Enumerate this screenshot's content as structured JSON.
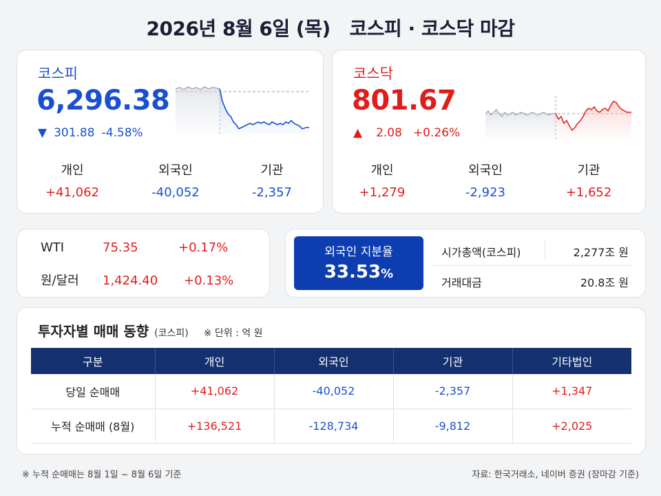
{
  "title": "2026년 8월 6일 (목)   코스피 · 코스닥 마감",
  "kospi": {
    "name": "코스피",
    "value": "6,296.38",
    "arrow": "▼",
    "change": "301.88",
    "change_pct": "-4.58%",
    "investors": [
      {
        "label": "개인",
        "value": "+41,062"
      },
      {
        "label": "외국인",
        "value": "-40,052"
      },
      {
        "label": "기관",
        "value": "-2,357"
      }
    ]
  },
  "kosdaq": {
    "name": "코스닥",
    "value": "801.67",
    "arrow": "▲",
    "change": "2.08",
    "change_pct": "+0.26%",
    "investors": [
      {
        "label": "개인",
        "value": "+1,279"
      },
      {
        "label": "외국인",
        "value": "-2,923"
      },
      {
        "label": "기관",
        "value": "+1,652"
      }
    ]
  },
  "macro": [
    {
      "name": "WTI",
      "price": "75.35",
      "change": "+0.17%"
    },
    {
      "name": "원/달러",
      "price": "1,424.40",
      "change": "+0.13%"
    }
  ],
  "foreign_share": {
    "label": "외국인 지분율",
    "value": "33.53",
    "unit": "%"
  },
  "market_stats": [
    {
      "label": "시가총액(코스피)",
      "value": "2,277조 원"
    },
    {
      "label": "거래대금",
      "value": "20.8조 원"
    }
  ],
  "flow": {
    "title": "투자자별 매매 동향",
    "subtitle": "(코스피)",
    "unit_note": "※ 단위 : 억 원",
    "headers": [
      "구분",
      "개인",
      "외국인",
      "기관",
      "기타법인"
    ],
    "rows": [
      {
        "label": "당일 순매매",
        "values": [
          "+41,062",
          "-40,052",
          "-2,357",
          "+1,347"
        ]
      },
      {
        "label": "누적 순매매 (8월)",
        "values": [
          "+136,521",
          "-128,734",
          "-9,812",
          "+2,025"
        ]
      }
    ]
  },
  "footnote_left": "※ 누적 순매매는 8월 1일 ~ 8월 6일 기준",
  "footnote_right": "자료: 한국거래소, 네이버 증권 (장마감 기준)",
  "colors": {
    "up": "#e21b1b",
    "down": "#1a4fd0",
    "navy": "#14306e",
    "accent_box": "#0d3db0"
  }
}
